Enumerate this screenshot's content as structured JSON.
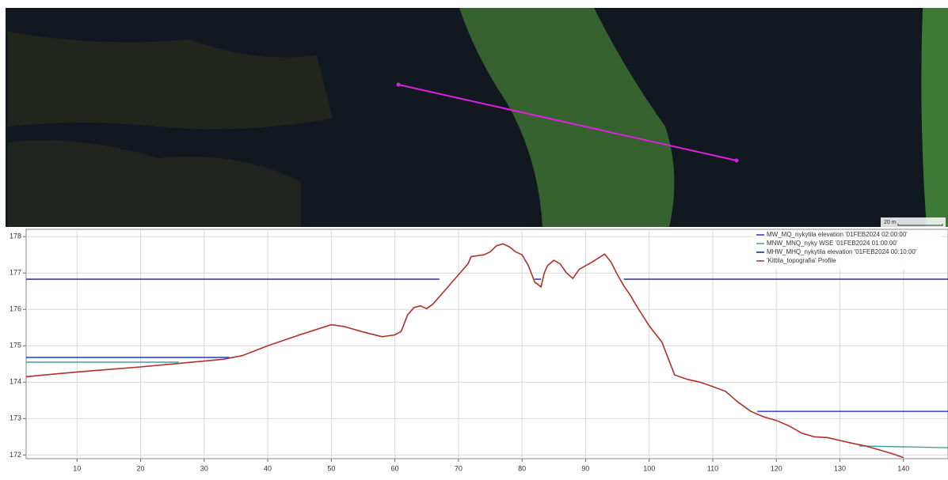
{
  "map": {
    "scale_label": "20 m"
  },
  "chart_data": {
    "type": "line",
    "xlim": [
      2,
      147
    ],
    "ylim": [
      171.9,
      178.2
    ],
    "xticks": [
      10,
      20,
      30,
      40,
      50,
      60,
      70,
      80,
      90,
      100,
      110,
      120,
      130,
      140
    ],
    "yticks": [
      172,
      173,
      174,
      175,
      176,
      177,
      178
    ],
    "grid": true,
    "legend": "top-right",
    "series": [
      {
        "name": "MW_MQ_nykytila elevation '01FEB2024 02:00:00'",
        "color": "#2233ee",
        "x": [
          2,
          34,
          null,
          117,
          147
        ],
        "values": [
          174.68,
          174.68,
          null,
          173.2,
          173.2
        ]
      },
      {
        "name": "MNW_MNQ_nyky WSE '01FEB2024 01:00:00'",
        "color": "#4c9c9c",
        "x": [
          2,
          26,
          null,
          133,
          147
        ],
        "values": [
          174.55,
          174.55,
          null,
          172.25,
          172.2
        ]
      },
      {
        "name": "MHW_MHQ_nykytila elevation '01FEB2024 00:10:00'",
        "color": "#1a1a8c",
        "x": [
          2,
          67,
          null,
          82,
          83,
          null,
          96,
          147
        ],
        "values": [
          176.83,
          176.83,
          null,
          176.83,
          176.83,
          null,
          176.83,
          176.83
        ]
      },
      {
        "name": "'Kittila_topografia' Profile",
        "color": "#b0302a",
        "x": [
          2,
          5,
          10,
          15,
          20,
          25,
          30,
          33,
          36,
          40,
          45,
          50,
          52,
          55,
          58,
          60,
          61,
          62,
          63,
          64,
          65,
          66,
          68,
          70,
          71.5,
          72,
          74,
          75,
          76,
          77,
          78,
          79,
          80,
          81,
          82,
          83,
          83.5,
          84,
          85,
          86,
          87,
          88,
          89,
          91,
          93,
          94,
          95,
          96,
          97,
          98,
          100,
          102,
          104,
          106,
          108,
          110,
          112,
          114,
          116,
          118,
          120,
          122,
          124,
          126,
          128,
          130,
          132,
          134,
          136,
          138,
          140
        ],
        "values": [
          174.15,
          174.2,
          174.28,
          174.35,
          174.42,
          174.5,
          174.58,
          174.63,
          174.73,
          175.0,
          175.3,
          175.58,
          175.53,
          175.38,
          175.25,
          175.3,
          175.4,
          175.85,
          176.05,
          176.1,
          176.02,
          176.15,
          176.55,
          176.95,
          177.25,
          177.45,
          177.5,
          177.58,
          177.75,
          177.8,
          177.72,
          177.58,
          177.5,
          177.2,
          176.75,
          176.62,
          177.0,
          177.2,
          177.35,
          177.25,
          177.0,
          176.85,
          177.1,
          177.3,
          177.52,
          177.3,
          176.95,
          176.65,
          176.4,
          176.1,
          175.55,
          175.1,
          174.2,
          174.08,
          174.0,
          173.88,
          173.75,
          173.45,
          173.2,
          173.05,
          172.95,
          172.8,
          172.6,
          172.5,
          172.48,
          172.4,
          172.32,
          172.25,
          172.15,
          172.05,
          171.93
        ]
      }
    ]
  }
}
